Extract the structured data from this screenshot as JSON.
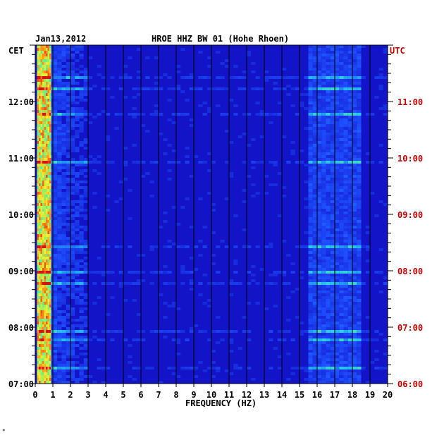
{
  "chart_data": {
    "type": "heatmap",
    "title_date": "Jan13,2012",
    "title_station": "HROE HHZ BW 01 (Hohe Rhoen)",
    "xlabel": "FREQUENCY (HZ)",
    "xlim": [
      0,
      20
    ],
    "x_ticks": [
      "0",
      "1",
      "2",
      "3",
      "4",
      "5",
      "6",
      "7",
      "8",
      "9",
      "10",
      "11",
      "12",
      "13",
      "14",
      "15",
      "16",
      "17",
      "18",
      "19",
      "20"
    ],
    "left_axis_label": "CET",
    "right_axis_label": "UTC",
    "left_time_ticks": [
      "07:00",
      "08:00",
      "09:00",
      "10:00",
      "11:00",
      "12:00"
    ],
    "right_time_ticks": [
      "06:00",
      "07:00",
      "08:00",
      "09:00",
      "10:00",
      "11:00"
    ],
    "time_range_cet": [
      "07:00",
      "13:00"
    ],
    "colors": {
      "background": "#1313c8",
      "left_label": "#000000",
      "right_label": "#cc0000",
      "grid": "#000000"
    },
    "energy_bands": [
      {
        "freq_range_hz": [
          0.1,
          0.9
        ],
        "level": "high"
      },
      {
        "freq_range_hz": [
          0.9,
          3.0
        ],
        "level": "moderate"
      },
      {
        "freq_range_hz": [
          15.5,
          18.5
        ],
        "level": "moderate"
      }
    ],
    "footer_mark": "*"
  }
}
